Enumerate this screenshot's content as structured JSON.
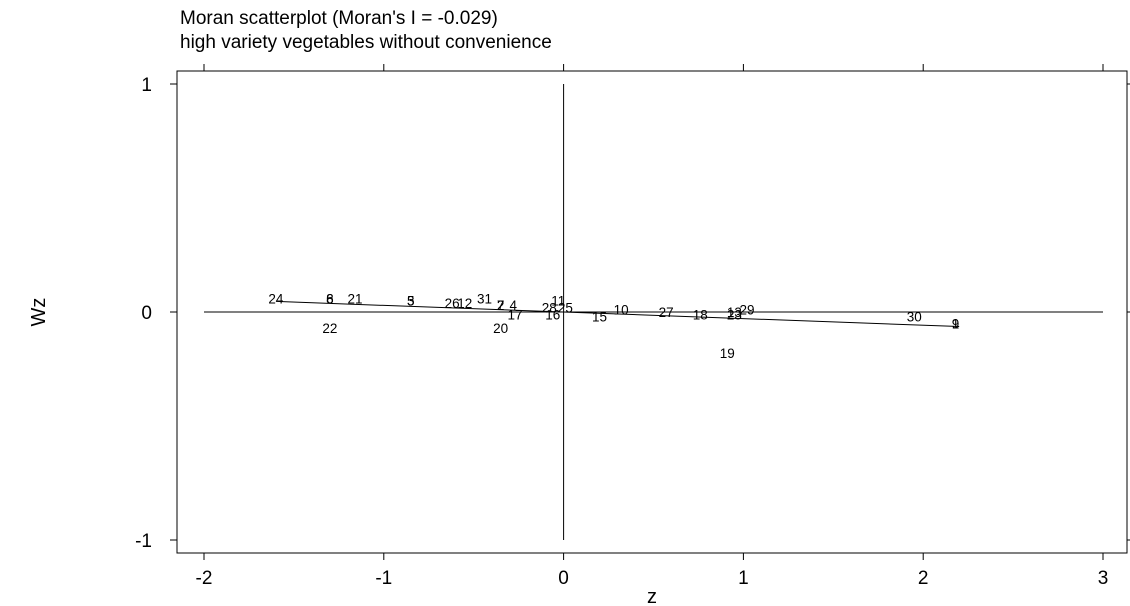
{
  "chart_data": {
    "type": "scatter",
    "title": "Moran scatterplot (Moran's I = -0.029)",
    "subtitle": "high variety vegetables without convenience",
    "xlabel": "z",
    "ylabel": "Wz",
    "xlim": [
      -2,
      3
    ],
    "ylim": [
      -1,
      1
    ],
    "xticks": [
      "-2",
      "-1",
      "0",
      "1",
      "2",
      "3"
    ],
    "yticks": [
      "-1",
      "0",
      "1"
    ],
    "grid": false,
    "reference_lines": {
      "x": 0,
      "y": 0
    },
    "regression_line": {
      "slope": -0.029,
      "x_range": [
        -1.6,
        2.2
      ]
    },
    "points": [
      {
        "label": "24",
        "x": -1.6,
        "y": 0.06
      },
      {
        "label": "22",
        "x": -1.3,
        "y": -0.07
      },
      {
        "label": "6",
        "x": -1.3,
        "y": 0.06
      },
      {
        "label": "8",
        "x": -1.3,
        "y": 0.06
      },
      {
        "label": "21",
        "x": -1.16,
        "y": 0.06
      },
      {
        "label": "3",
        "x": -0.85,
        "y": 0.05
      },
      {
        "label": "5",
        "x": -0.85,
        "y": 0.05
      },
      {
        "label": "26",
        "x": -0.62,
        "y": 0.04
      },
      {
        "label": "12",
        "x": -0.55,
        "y": 0.04
      },
      {
        "label": "31",
        "x": -0.44,
        "y": 0.06
      },
      {
        "label": "2",
        "x": -0.35,
        "y": 0.03
      },
      {
        "label": "7",
        "x": -0.35,
        "y": 0.03
      },
      {
        "label": "4",
        "x": -0.28,
        "y": 0.03
      },
      {
        "label": "17",
        "x": -0.27,
        "y": -0.01
      },
      {
        "label": "20",
        "x": -0.35,
        "y": -0.07
      },
      {
        "label": "11",
        "x": -0.03,
        "y": 0.05
      },
      {
        "label": "28",
        "x": -0.08,
        "y": 0.02
      },
      {
        "label": "25",
        "x": 0.01,
        "y": 0.02
      },
      {
        "label": "16",
        "x": -0.06,
        "y": -0.01
      },
      {
        "label": "15",
        "x": 0.2,
        "y": -0.02
      },
      {
        "label": "10",
        "x": 0.32,
        "y": 0.01
      },
      {
        "label": "27",
        "x": 0.57,
        "y": 0.0
      },
      {
        "label": "18",
        "x": 0.76,
        "y": -0.01
      },
      {
        "label": "13",
        "x": 0.95,
        "y": 0.0
      },
      {
        "label": "23",
        "x": 0.95,
        "y": -0.01
      },
      {
        "label": "29",
        "x": 1.02,
        "y": 0.01
      },
      {
        "label": "19",
        "x": 0.91,
        "y": -0.18
      },
      {
        "label": "30",
        "x": 1.95,
        "y": -0.02
      },
      {
        "label": "9",
        "x": 2.18,
        "y": -0.05
      },
      {
        "label": "1",
        "x": 2.18,
        "y": -0.05
      }
    ]
  }
}
